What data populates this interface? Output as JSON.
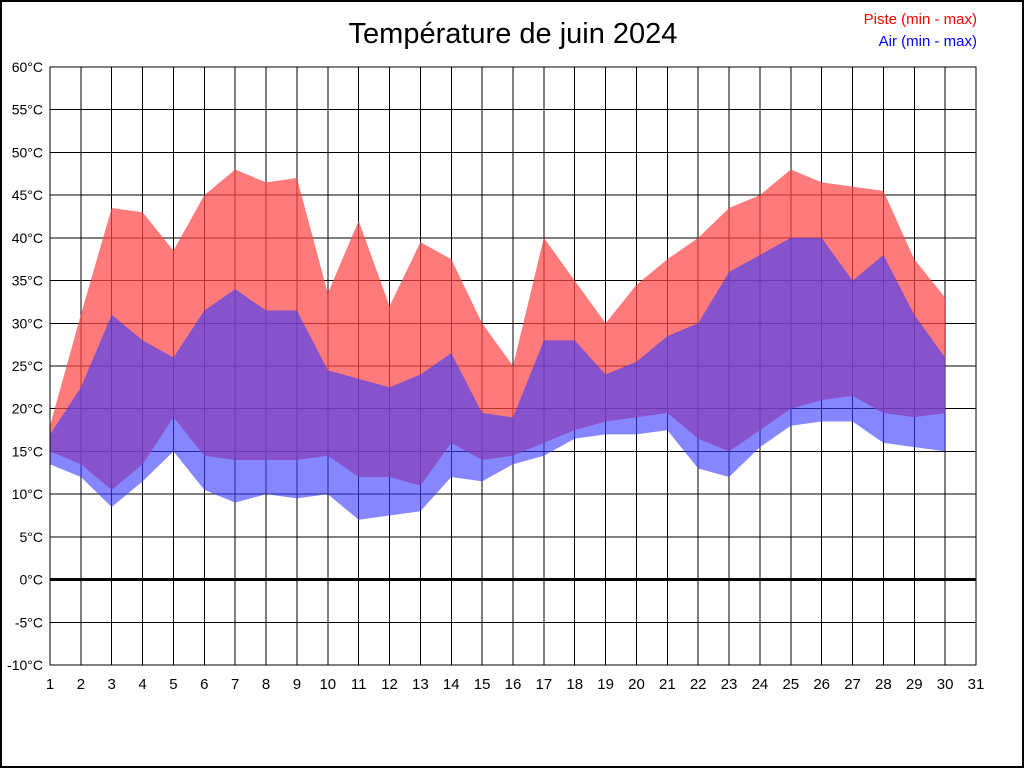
{
  "title": "Température de juin 2024",
  "legend": [
    {
      "label": "Piste (min - max)",
      "color": "#ff0000"
    },
    {
      "label": "Air (min - max)",
      "color": "#0000ff"
    }
  ],
  "colors": {
    "piste_fill": "rgba(255,70,70,0.72)",
    "air_fill": "rgba(60,60,255,0.62)",
    "grid": "#000000",
    "zero_line": "#000000",
    "text": "#000000"
  },
  "chart_data": {
    "type": "area",
    "title": "Température de juin 2024",
    "xlabel": "",
    "ylabel": "",
    "xlim": [
      1,
      31
    ],
    "ylim": [
      -10,
      60
    ],
    "grid": true,
    "zero_line_at": 0,
    "legend_position": "top-right",
    "x": [
      1,
      2,
      3,
      4,
      5,
      6,
      7,
      8,
      9,
      10,
      11,
      12,
      13,
      14,
      15,
      16,
      17,
      18,
      19,
      20,
      21,
      22,
      23,
      24,
      25,
      26,
      27,
      28,
      29,
      30
    ],
    "x_tick_labels": [
      "1",
      "2",
      "3",
      "4",
      "5",
      "6",
      "7",
      "8",
      "9",
      "10",
      "11",
      "12",
      "13",
      "14",
      "15",
      "16",
      "17",
      "18",
      "19",
      "20",
      "21",
      "22",
      "23",
      "24",
      "25",
      "26",
      "27",
      "28",
      "29",
      "30",
      "31"
    ],
    "y_tick_values": [
      60,
      55,
      50,
      45,
      40,
      35,
      30,
      25,
      20,
      15,
      10,
      5,
      0,
      -5,
      -10
    ],
    "y_tick_labels": [
      "60°C",
      "55°C",
      "50°C",
      "45°C",
      "40°C",
      "35°C",
      "30°C",
      "25°C",
      "20°C",
      "15°C",
      "10°C",
      "5°C",
      "0°C",
      "-5°C",
      "-10°C"
    ],
    "series": [
      {
        "name": "Piste (min - max)",
        "kind": "band",
        "max": [
          18,
          31,
          43.5,
          43,
          38.5,
          45,
          48,
          46.5,
          47,
          33.5,
          42,
          32,
          39.5,
          37.5,
          30,
          25,
          40,
          35,
          30,
          34.5,
          37.5,
          40,
          43.5,
          45,
          48,
          46.5,
          46,
          45.5,
          37.5,
          33
        ],
        "min": [
          15,
          13.5,
          10.5,
          13.5,
          19,
          14.5,
          14,
          14,
          14,
          14.5,
          12,
          12,
          11,
          16,
          14,
          14.5,
          16,
          17.5,
          18.5,
          19,
          19.5,
          16.5,
          15,
          17.5,
          20,
          21,
          21.5,
          19.5,
          19,
          19.5
        ]
      },
      {
        "name": "Air (min - max)",
        "kind": "band",
        "max": [
          17,
          22.5,
          31,
          28,
          26,
          31.5,
          34,
          31.5,
          31.5,
          24.5,
          23.5,
          22.5,
          24,
          26.5,
          19.5,
          19,
          28,
          28,
          24,
          25.5,
          28.5,
          30,
          36,
          38,
          40,
          40,
          35,
          38,
          31,
          26
        ],
        "min": [
          13.5,
          12,
          8.5,
          11.5,
          15,
          10.5,
          9,
          10,
          9.5,
          10,
          7,
          7.5,
          8,
          12,
          11.5,
          13.5,
          14.5,
          16.5,
          17,
          17,
          17.5,
          13,
          12,
          15.5,
          18,
          18.5,
          18.5,
          16,
          15.5,
          15
        ]
      }
    ]
  }
}
